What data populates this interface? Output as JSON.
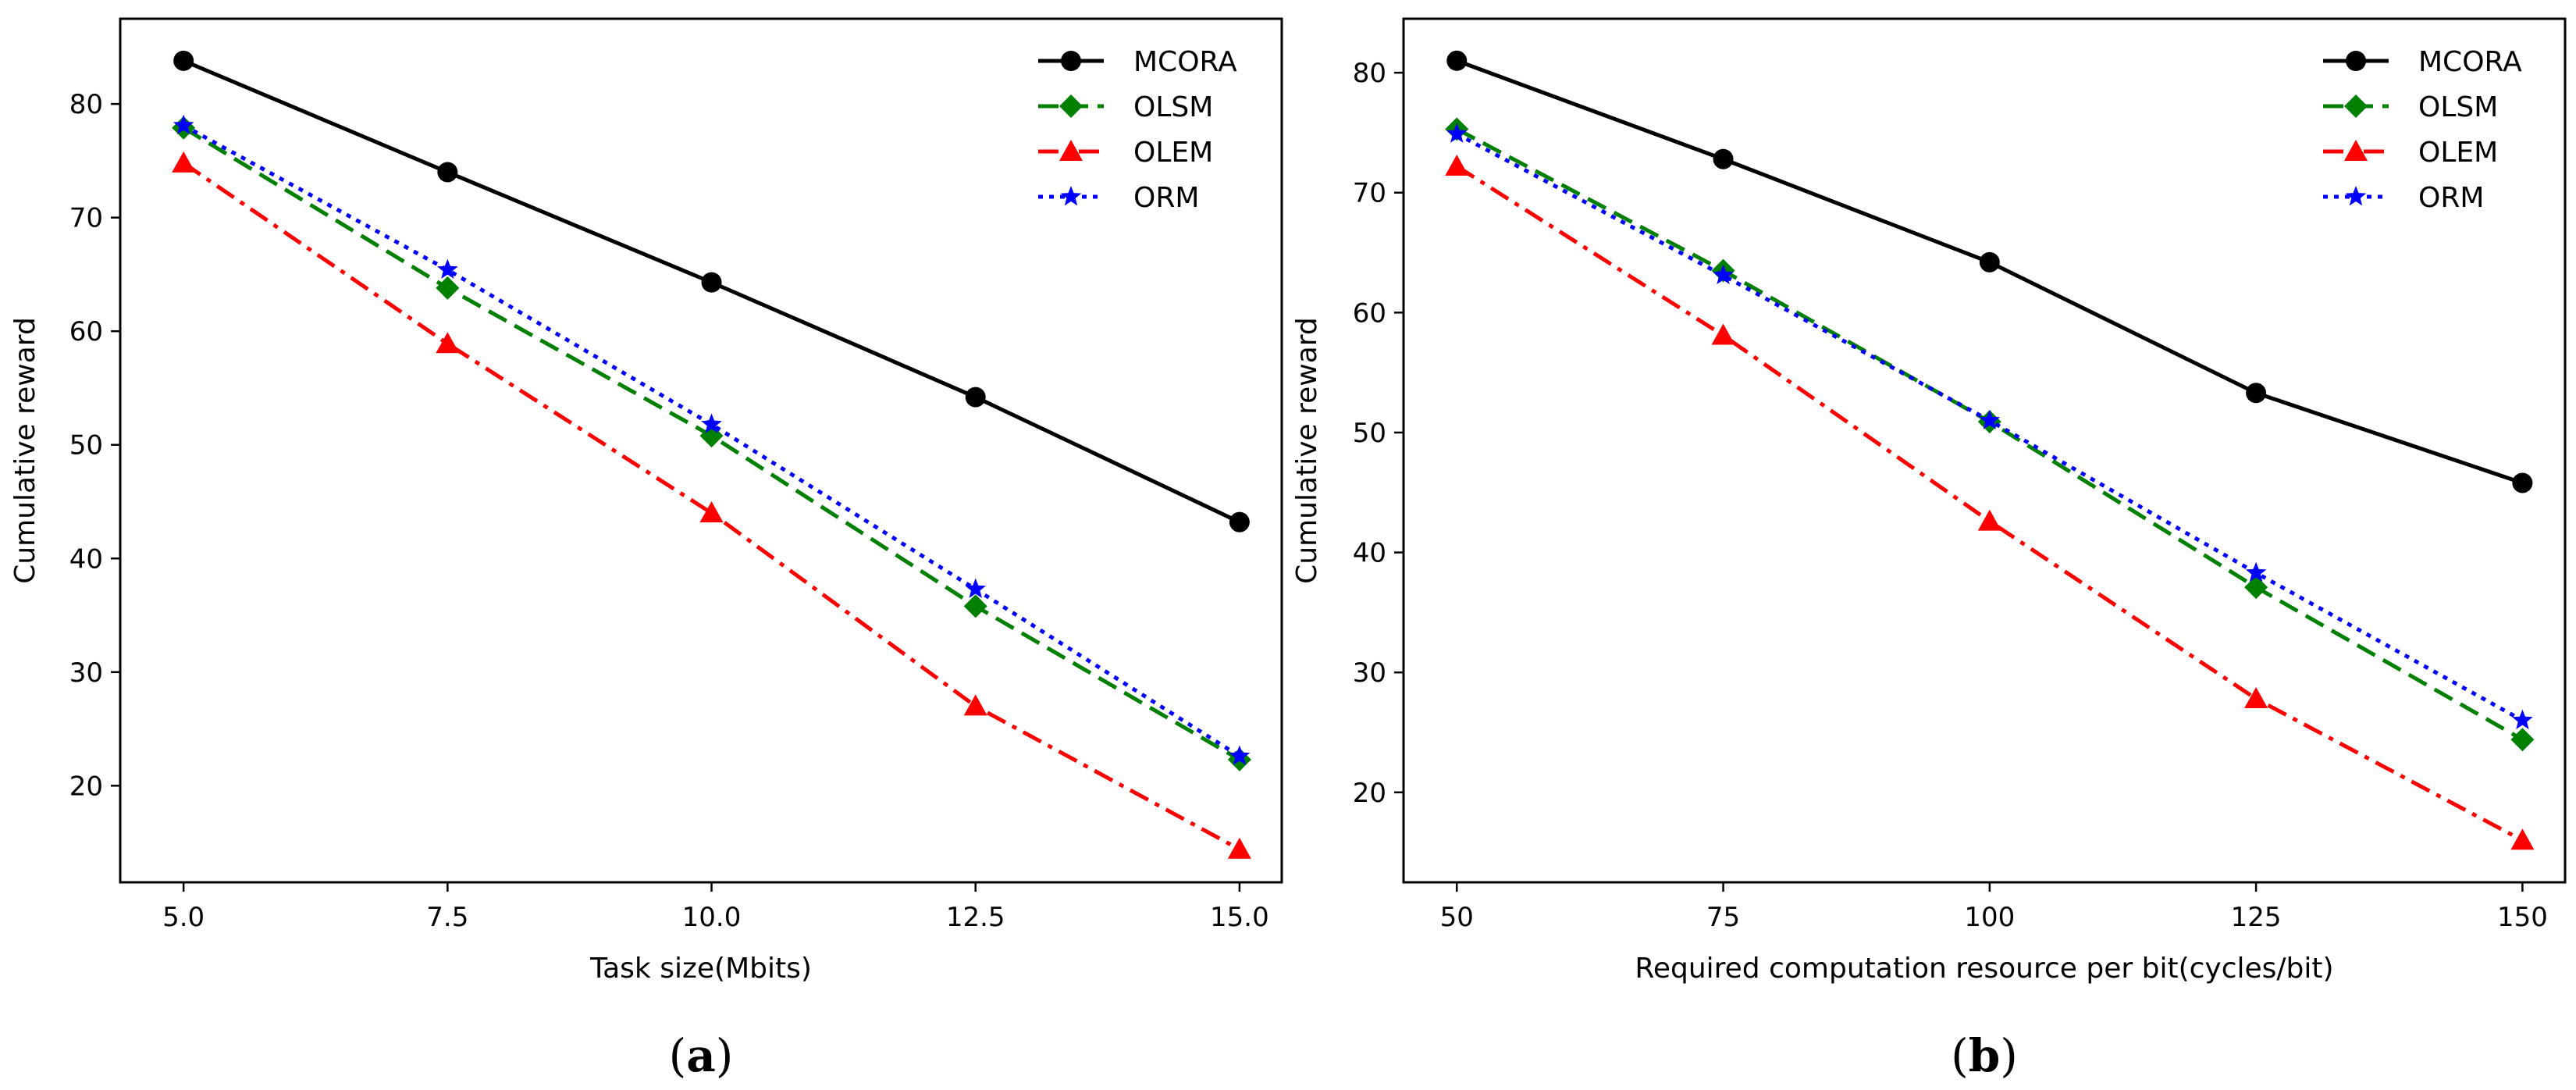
{
  "chart_data": [
    {
      "type": "line",
      "panel_label": "(a)",
      "panel_letter": "a",
      "title": "",
      "xlabel": "Task size(Mbits)",
      "ylabel": "Cumulative reward",
      "x": [
        5.0,
        7.5,
        10.0,
        12.5,
        15.0
      ],
      "xticks": [
        5.0,
        7.5,
        10.0,
        12.5,
        15.0
      ],
      "xtick_labels": [
        "5.0",
        "7.5",
        "10.0",
        "12.5",
        "15.0"
      ],
      "yticks": [
        20,
        30,
        40,
        50,
        60,
        70,
        80
      ],
      "ytick_labels": [
        "20",
        "30",
        "40",
        "50",
        "60",
        "70",
        "80"
      ],
      "xlim": [
        4.4,
        15.4
      ],
      "ylim": [
        11.5,
        87.5
      ],
      "grid": false,
      "legend_position": "top-right",
      "series": [
        {
          "name": "MCORA",
          "color": "#000000",
          "marker": "circle",
          "linestyle": "solid",
          "values": [
            83.8,
            74.0,
            64.3,
            54.2,
            43.2
          ]
        },
        {
          "name": "OLSM",
          "color": "#008000",
          "marker": "diamond",
          "linestyle": "dashed",
          "values": [
            77.9,
            63.8,
            50.8,
            35.8,
            22.3
          ]
        },
        {
          "name": "OLEM",
          "color": "#ff0000",
          "marker": "triangle",
          "linestyle": "dashdot",
          "values": [
            74.8,
            58.9,
            44.0,
            27.0,
            14.4
          ]
        },
        {
          "name": "ORM",
          "color": "#0000ff",
          "marker": "star",
          "linestyle": "dotted",
          "values": [
            78.1,
            65.4,
            51.8,
            37.3,
            22.6
          ]
        }
      ]
    },
    {
      "type": "line",
      "panel_label": "(b)",
      "panel_letter": "b",
      "title": "",
      "xlabel": "Required computation resource per bit(cycles/bit)",
      "ylabel": "Cumulative reward",
      "x": [
        50,
        75,
        100,
        125,
        150
      ],
      "xticks": [
        50,
        75,
        100,
        125,
        150
      ],
      "xtick_labels": [
        "50",
        "75",
        "100",
        "125",
        "150"
      ],
      "yticks": [
        20,
        30,
        40,
        50,
        60,
        70,
        80
      ],
      "ytick_labels": [
        "20",
        "30",
        "40",
        "50",
        "60",
        "70",
        "80"
      ],
      "xlim": [
        45,
        154
      ],
      "ylim": [
        12.5,
        84.5
      ],
      "grid": false,
      "legend_position": "top-right",
      "series": [
        {
          "name": "MCORA",
          "color": "#000000",
          "marker": "circle",
          "linestyle": "solid",
          "values": [
            81.0,
            72.8,
            64.2,
            53.3,
            45.8
          ]
        },
        {
          "name": "OLSM",
          "color": "#008000",
          "marker": "diamond",
          "linestyle": "dashed",
          "values": [
            75.3,
            63.5,
            50.9,
            37.1,
            24.4
          ]
        },
        {
          "name": "OLEM",
          "color": "#ff0000",
          "marker": "triangle",
          "linestyle": "dashdot",
          "values": [
            72.2,
            58.1,
            42.6,
            27.8,
            16.0
          ]
        },
        {
          "name": "ORM",
          "color": "#0000ff",
          "marker": "star",
          "linestyle": "dotted",
          "values": [
            74.9,
            63.1,
            51.0,
            38.3,
            26.0
          ]
        }
      ]
    }
  ]
}
